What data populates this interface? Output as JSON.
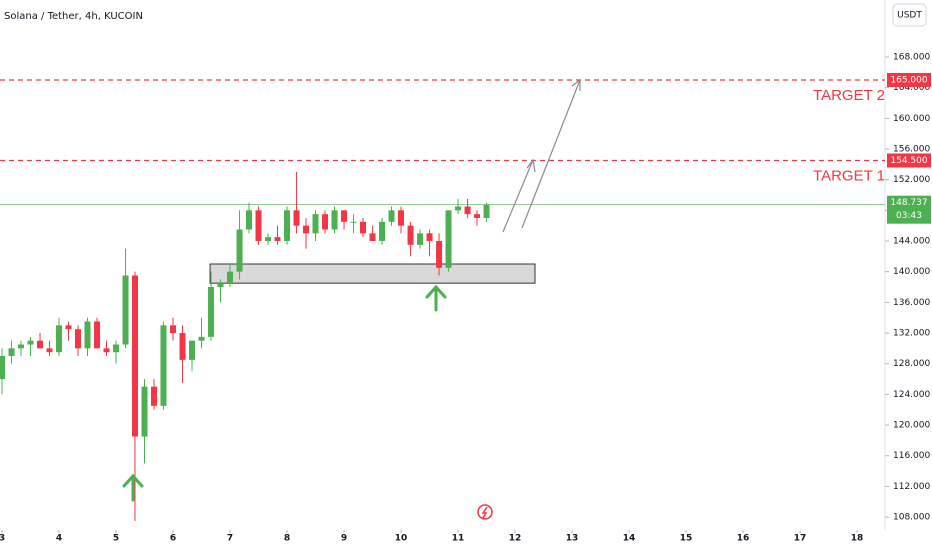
{
  "chart_data": {
    "type": "candlestick",
    "title": "Solana / Tether, 4h, KUCOIN",
    "currency": "USDT",
    "up_color": "#4caf50",
    "down_color": "#f23645",
    "x": [
      3,
      3.167,
      3.333,
      3.5,
      3.667,
      3.833,
      4,
      4.167,
      4.333,
      4.5,
      4.667,
      4.833,
      5,
      5.167,
      5.333,
      5.5,
      5.667,
      5.833,
      6,
      6.167,
      6.333,
      6.5,
      6.667,
      6.833,
      7,
      7.167,
      7.333,
      7.5,
      7.667,
      7.833,
      8,
      8.167,
      8.333,
      8.5,
      8.667,
      8.833,
      9,
      9.167,
      9.333,
      9.5,
      9.667,
      9.833,
      10,
      10.167,
      10.333,
      10.5,
      10.667,
      10.833,
      11,
      11.167,
      11.333,
      11.5
    ],
    "open": [
      126,
      129,
      130,
      130.5,
      131,
      130,
      129.5,
      133,
      132.5,
      130,
      133.5,
      130,
      129.5,
      130.5,
      139.5,
      118.5,
      125,
      122.5,
      133,
      132,
      128.5,
      131,
      131.5,
      138,
      138.5,
      140,
      145.5,
      148,
      144,
      144.5,
      144,
      148,
      146,
      145,
      147.5,
      145.5,
      148,
      146.5,
      146.5,
      145,
      144,
      146.5,
      148,
      146,
      143.5,
      145,
      144,
      140.5,
      148,
      148.5,
      147.5,
      147
    ],
    "high": [
      130,
      131,
      131,
      131.5,
      132,
      131,
      134,
      133.5,
      133,
      134,
      134,
      131,
      131,
      143,
      140,
      126,
      126,
      133.5,
      134,
      133,
      131,
      134,
      140,
      139,
      141,
      148,
      149,
      148.5,
      145,
      146,
      148.5,
      153,
      147,
      148,
      148,
      148.5,
      148,
      147.5,
      147,
      146,
      147,
      148.5,
      148.5,
      146.5,
      145.5,
      145.5,
      145,
      148,
      149.5,
      149.5,
      148,
      149
    ],
    "low": [
      124,
      128,
      129,
      129,
      130,
      129,
      129,
      131,
      129,
      129,
      130,
      129,
      128,
      130,
      107.5,
      115,
      122,
      122,
      131,
      125.5,
      127,
      130,
      131,
      136,
      138,
      139,
      145,
      143.5,
      143.5,
      143.5,
      143.5,
      145,
      143,
      144,
      145,
      145,
      145.5,
      145,
      144.5,
      144,
      143.5,
      146,
      145,
      142,
      143,
      142,
      139.5,
      140,
      147.5,
      147,
      146,
      146.5
    ],
    "close": [
      129,
      130,
      130.5,
      131,
      130,
      129.5,
      133,
      132.5,
      130,
      133.5,
      130,
      129.5,
      130.5,
      139.5,
      118.5,
      125,
      122.5,
      133,
      132,
      128.5,
      131,
      131.5,
      138,
      138.5,
      140,
      145.5,
      148,
      144,
      144.5,
      144,
      148,
      146,
      145,
      147.5,
      145.5,
      148,
      146.5,
      146.5,
      145,
      144,
      146.5,
      148,
      146,
      143.5,
      145,
      144,
      140.5,
      148,
      148.5,
      147.5,
      147,
      148.7
    ],
    "xlim": [
      2.965,
      18.49
    ],
    "ylim": [
      106.31,
      175.43
    ],
    "xticks": [
      3,
      4,
      5,
      6,
      7,
      8,
      9,
      10,
      11,
      12,
      13,
      14,
      15,
      16,
      17,
      18
    ],
    "yticks": [
      {
        "value": 108,
        "label": "108.000"
      },
      {
        "value": 112,
        "label": "112.000"
      },
      {
        "value": 116,
        "label": "116.000"
      },
      {
        "value": 120,
        "label": "120.000"
      },
      {
        "value": 124,
        "label": "124.000"
      },
      {
        "value": 128,
        "label": "128.000"
      },
      {
        "value": 132,
        "label": "132.000"
      },
      {
        "value": 136,
        "label": "136.000"
      },
      {
        "value": 140,
        "label": "140.000"
      },
      {
        "value": 144,
        "label": "144.000"
      },
      {
        "value": 148,
        "label": "148.000"
      },
      {
        "value": 152,
        "label": "152.000"
      },
      {
        "value": 156,
        "label": "156.000"
      },
      {
        "value": 160,
        "label": "160.000"
      },
      {
        "value": 164,
        "label": "164.000"
      },
      {
        "value": 168,
        "label": "168.000"
      }
    ],
    "levels": [
      {
        "value": 165,
        "label": "165.000",
        "text": "TARGET 2"
      },
      {
        "value": 154.5,
        "label": "154.500",
        "text": "TARGET 1"
      }
    ],
    "last_price": {
      "value": 148.737,
      "label": "148.737",
      "countdown": "03:43"
    },
    "zone": {
      "low": 138.5,
      "high": 141,
      "x0": 6.65,
      "x1": 12.35
    }
  }
}
